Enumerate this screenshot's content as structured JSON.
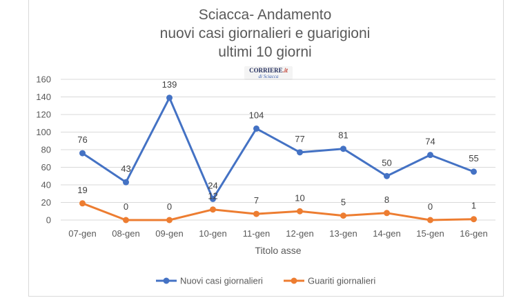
{
  "chart_data": {
    "type": "line",
    "title": [
      "Sciacca- Andamento",
      "nuovi casi giornalieri e guarigioni",
      "ultimi 10 giorni"
    ],
    "categories": [
      "07-gen",
      "08-gen",
      "09-gen",
      "10-gen",
      "11-gen",
      "12-gen",
      "13-gen",
      "14-gen",
      "15-gen",
      "16-gen"
    ],
    "series": [
      {
        "name": "Nuovi casi giornalieri",
        "color": "#4472c4",
        "values": [
          76,
          43,
          139,
          24,
          104,
          77,
          81,
          50,
          74,
          55
        ]
      },
      {
        "name": "Guariti giornalieri",
        "color": "#ed7d31",
        "values": [
          19,
          0,
          0,
          12,
          7,
          10,
          5,
          8,
          0,
          1
        ]
      }
    ],
    "xlabel": "Titolo asse",
    "ylabel": "",
    "ylim": [
      0,
      160
    ],
    "yticks": [
      0,
      20,
      40,
      60,
      80,
      100,
      120,
      140,
      160
    ],
    "grid": true,
    "legend": "bottom"
  },
  "logo": {
    "line1": "CORRIERE",
    "line1_suffix": ".it",
    "line2": "di Sciacca"
  }
}
